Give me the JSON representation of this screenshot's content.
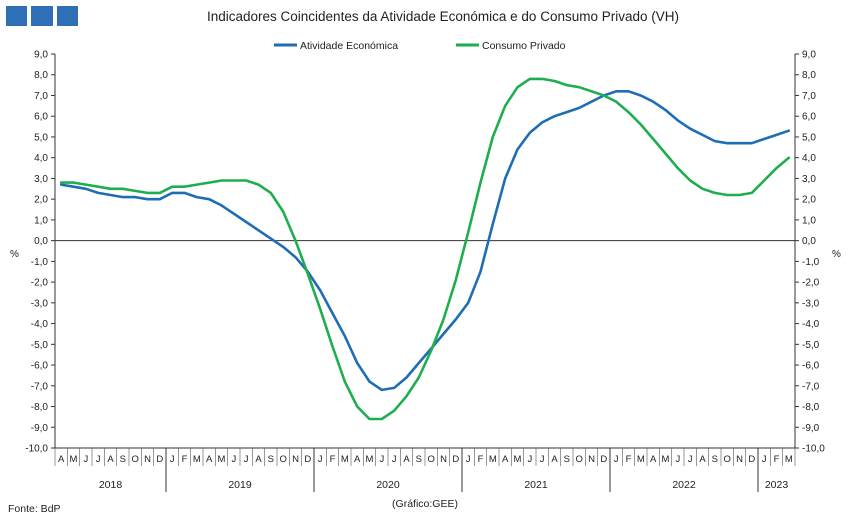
{
  "header": {
    "logo_icon": "bdp-logo-squares",
    "logo_color": "#2f6fb6"
  },
  "chart_data": {
    "type": "line",
    "title": "Indicadores Coincidentes da Atividade Económica e do Consumo Privado (VH)",
    "ylabel_left": "%",
    "ylabel_right": "%",
    "ylim": [
      -10,
      9
    ],
    "yticks": [
      "-10,0",
      "-9,0",
      "-8,0",
      "-7,0",
      "-6,0",
      "-5,0",
      "-4,0",
      "-3,0",
      "-2,0",
      "-1,0",
      "0,0",
      "1,0",
      "2,0",
      "3,0",
      "4,0",
      "5,0",
      "6,0",
      "7,0",
      "8,0",
      "9,0"
    ],
    "months": [
      "A",
      "M",
      "J",
      "J",
      "A",
      "S",
      "O",
      "N",
      "D",
      "J",
      "F",
      "M",
      "A",
      "M",
      "J",
      "J",
      "A",
      "S",
      "O",
      "N",
      "D",
      "J",
      "F",
      "M",
      "A",
      "M",
      "J",
      "J",
      "A",
      "S",
      "O",
      "N",
      "D",
      "J",
      "F",
      "M",
      "A",
      "M",
      "J",
      "J",
      "A",
      "S",
      "O",
      "N",
      "D",
      "J",
      "F",
      "M",
      "A",
      "M",
      "J",
      "J",
      "A",
      "S",
      "O",
      "N",
      "D",
      "J",
      "F",
      "M"
    ],
    "years": [
      {
        "label": "2018",
        "start": 0,
        "count": 9
      },
      {
        "label": "2019",
        "start": 9,
        "count": 12
      },
      {
        "label": "2020",
        "start": 21,
        "count": 12
      },
      {
        "label": "2021",
        "start": 33,
        "count": 12
      },
      {
        "label": "2022",
        "start": 45,
        "count": 12
      },
      {
        "label": "2023",
        "start": 57,
        "count": 3
      }
    ],
    "legend_position": "top-center",
    "grid": false,
    "series": [
      {
        "name": "Atividade Económica",
        "color": "#1f6db5",
        "values": [
          2.7,
          2.6,
          2.5,
          2.3,
          2.2,
          2.1,
          2.1,
          2.0,
          2.0,
          2.3,
          2.3,
          2.1,
          2.0,
          1.7,
          1.3,
          0.9,
          0.5,
          0.1,
          -0.3,
          -0.8,
          -1.5,
          -2.4,
          -3.5,
          -4.6,
          -5.9,
          -6.8,
          -7.2,
          -7.1,
          -6.6,
          -5.9,
          -5.2,
          -4.5,
          -3.8,
          -3.0,
          -1.5,
          0.8,
          3.0,
          4.4,
          5.2,
          5.7,
          6.0,
          6.2,
          6.4,
          6.7,
          7.0,
          7.2,
          7.2,
          7.0,
          6.7,
          6.3,
          5.8,
          5.4,
          5.1,
          4.8,
          4.7,
          4.7,
          4.7,
          4.9,
          5.1,
          5.3
        ]
      },
      {
        "name": "Consumo Privado",
        "color": "#1fae4f",
        "values": [
          2.8,
          2.8,
          2.7,
          2.6,
          2.5,
          2.5,
          2.4,
          2.3,
          2.3,
          2.6,
          2.6,
          2.7,
          2.8,
          2.9,
          2.9,
          2.9,
          2.7,
          2.3,
          1.4,
          0.0,
          -1.6,
          -3.3,
          -5.1,
          -6.8,
          -8.0,
          -8.6,
          -8.6,
          -8.2,
          -7.5,
          -6.6,
          -5.3,
          -3.8,
          -1.9,
          0.4,
          2.8,
          5.0,
          6.5,
          7.4,
          7.8,
          7.8,
          7.7,
          7.5,
          7.4,
          7.2,
          7.0,
          6.7,
          6.2,
          5.6,
          4.9,
          4.2,
          3.5,
          2.9,
          2.5,
          2.3,
          2.2,
          2.2,
          2.3,
          2.9,
          3.5,
          4.0
        ]
      }
    ]
  },
  "footer": {
    "source": "Fonte: BdP",
    "credit": "(Gráfico:GEE)"
  }
}
